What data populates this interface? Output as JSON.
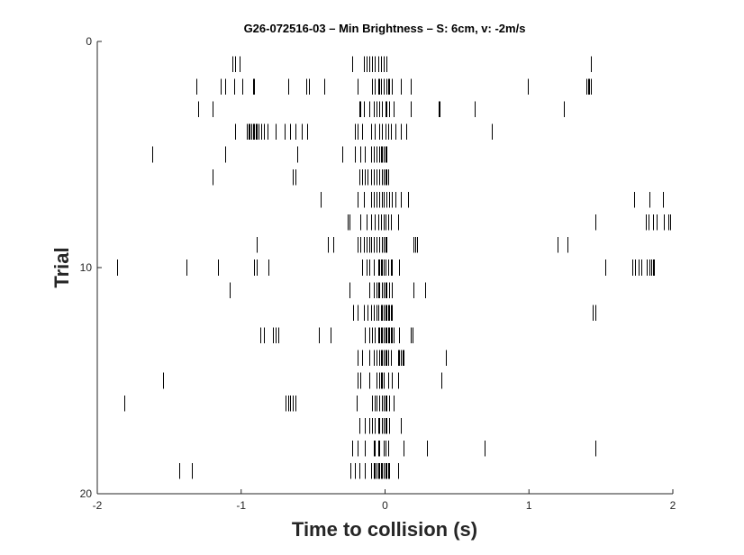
{
  "chart_data": {
    "type": "scatter",
    "subtype": "raster",
    "title": "G26-072516-03 –  Min Brightness – S: 6cm, v: -2m/s",
    "xlabel": "Time to collision (s)",
    "ylabel": "Trial",
    "xlim": [
      -2,
      2
    ],
    "ylim": [
      0,
      20
    ],
    "y_reversed": true,
    "xticks": [
      -2,
      -1,
      0,
      1,
      2
    ],
    "yticks": [
      0,
      10,
      20
    ],
    "grid": false,
    "box": false,
    "colors": {
      "spike": "#000000",
      "axis": "#262626"
    },
    "trials": [
      {
        "trial": 1,
        "times": [
          -1.06,
          -1.04,
          -1.01,
          -0.23,
          -0.15,
          -0.13,
          -0.11,
          -0.09,
          -0.07,
          -0.05,
          -0.03,
          -0.01,
          0.01,
          1.43
        ]
      },
      {
        "trial": 2,
        "times": [
          -1.31,
          -1.14,
          -1.11,
          -1.05,
          -0.99,
          -0.92,
          -0.91,
          -0.67,
          -0.55,
          -0.53,
          -0.42,
          -0.19,
          -0.09,
          -0.07,
          -0.05,
          -0.04,
          -0.03,
          -0.01,
          0.01,
          0.02,
          0.03,
          0.05,
          0.11,
          0.18,
          0.99,
          1.4,
          1.41,
          1.42,
          1.43
        ]
      },
      {
        "trial": 3,
        "times": [
          -1.3,
          -1.2,
          -0.18,
          -0.17,
          -0.15,
          -0.11,
          -0.08,
          -0.06,
          -0.04,
          -0.02,
          0.0,
          0.01,
          0.03,
          0.06,
          0.18,
          0.37,
          0.38,
          0.62,
          1.24
        ]
      },
      {
        "trial": 4,
        "times": [
          -1.04,
          -0.96,
          -0.95,
          -0.94,
          -0.93,
          -0.92,
          -0.91,
          -0.9,
          -0.89,
          -0.88,
          -0.86,
          -0.84,
          -0.82,
          -0.76,
          -0.7,
          -0.66,
          -0.62,
          -0.58,
          -0.54,
          -0.21,
          -0.19,
          -0.16,
          -0.1,
          -0.07,
          -0.04,
          -0.02,
          0.0,
          0.02,
          0.04,
          0.07,
          0.11,
          0.15,
          0.74
        ]
      },
      {
        "trial": 5,
        "times": [
          -1.62,
          -1.11,
          -0.61,
          -0.3,
          -0.21,
          -0.17,
          -0.14,
          -0.1,
          -0.08,
          -0.06,
          -0.04,
          -0.03,
          -0.02,
          -0.01,
          0.0,
          0.01
        ]
      },
      {
        "trial": 6,
        "times": [
          -1.2,
          -0.64,
          -0.62,
          -0.18,
          -0.16,
          -0.14,
          -0.12,
          -0.1,
          -0.08,
          -0.06,
          -0.04,
          -0.02,
          -0.01,
          0.0,
          0.01,
          0.02
        ]
      },
      {
        "trial": 7,
        "times": [
          -0.45,
          -0.19,
          -0.15,
          -0.1,
          -0.08,
          -0.06,
          -0.04,
          -0.02,
          -0.01,
          0.01,
          0.03,
          0.05,
          0.07,
          0.11,
          0.16,
          1.73,
          1.84,
          1.93
        ]
      },
      {
        "trial": 8,
        "times": [
          -0.26,
          -0.25,
          -0.17,
          -0.13,
          -0.1,
          -0.07,
          -0.05,
          -0.03,
          -0.01,
          0.0,
          0.02,
          0.04,
          0.09,
          1.46,
          1.81,
          1.83,
          1.86,
          1.89,
          1.94,
          1.97,
          1.98
        ]
      },
      {
        "trial": 9,
        "times": [
          -0.89,
          -0.4,
          -0.36,
          -0.19,
          -0.17,
          -0.15,
          -0.13,
          -0.11,
          -0.1,
          -0.08,
          -0.06,
          -0.04,
          -0.02,
          -0.01,
          0.0,
          0.01,
          0.2,
          0.21,
          0.22,
          1.2,
          1.27
        ]
      },
      {
        "trial": 10,
        "times": [
          -1.86,
          -1.38,
          -1.16,
          -0.91,
          -0.89,
          -0.81,
          -0.16,
          -0.13,
          -0.11,
          -0.08,
          -0.05,
          -0.04,
          -0.03,
          -0.02,
          -0.01,
          0.0,
          0.02,
          0.04,
          0.05,
          0.1,
          1.53,
          1.72,
          1.74,
          1.76,
          1.78,
          1.82,
          1.84,
          1.85,
          1.86,
          1.87
        ]
      },
      {
        "trial": 11,
        "times": [
          -1.08,
          -0.25,
          -0.11,
          -0.08,
          -0.06,
          -0.05,
          -0.04,
          -0.02,
          -0.01,
          0.0,
          0.01,
          0.03,
          0.05,
          0.2,
          0.28
        ]
      },
      {
        "trial": 12,
        "times": [
          -0.22,
          -0.19,
          -0.15,
          -0.12,
          -0.1,
          -0.08,
          -0.06,
          -0.05,
          -0.03,
          -0.02,
          -0.01,
          0.0,
          0.01,
          0.02,
          0.03,
          0.04,
          0.05,
          1.44,
          1.46
        ]
      },
      {
        "trial": 13,
        "times": [
          -0.87,
          -0.84,
          -0.78,
          -0.76,
          -0.74,
          -0.46,
          -0.38,
          -0.14,
          -0.11,
          -0.09,
          -0.07,
          -0.05,
          -0.04,
          -0.03,
          -0.02,
          -0.01,
          0.0,
          0.01,
          0.02,
          0.03,
          0.04,
          0.05,
          0.06,
          0.1,
          0.18,
          0.19
        ]
      },
      {
        "trial": 14,
        "times": [
          -0.19,
          -0.16,
          -0.11,
          -0.08,
          -0.06,
          -0.04,
          -0.03,
          -0.02,
          -0.01,
          0.0,
          0.01,
          0.02,
          0.04,
          0.09,
          0.1,
          0.11,
          0.12,
          0.13,
          0.42
        ]
      },
      {
        "trial": 15,
        "times": [
          -1.54,
          -0.19,
          -0.17,
          -0.11,
          -0.06,
          -0.04,
          -0.03,
          -0.02,
          -0.01,
          0.02,
          0.05,
          0.09,
          0.39
        ]
      },
      {
        "trial": 16,
        "times": [
          -1.81,
          -0.69,
          -0.67,
          -0.66,
          -0.64,
          -0.62,
          -0.2,
          -0.09,
          -0.07,
          -0.06,
          -0.04,
          -0.02,
          -0.01,
          0.0,
          0.01,
          0.03,
          0.06
        ]
      },
      {
        "trial": 17,
        "times": [
          -0.18,
          -0.14,
          -0.11,
          -0.09,
          -0.07,
          -0.05,
          -0.04,
          -0.02,
          -0.01,
          0.0,
          0.01,
          0.03,
          0.11
        ]
      },
      {
        "trial": 18,
        "times": [
          -0.23,
          -0.19,
          -0.14,
          -0.08,
          -0.07,
          -0.05,
          -0.04,
          -0.01,
          0.0,
          0.02,
          0.13,
          0.29,
          0.69,
          1.46
        ]
      },
      {
        "trial": 19,
        "times": [
          -1.43,
          -1.34,
          -0.24,
          -0.21,
          -0.18,
          -0.14,
          -0.1,
          -0.08,
          -0.07,
          -0.06,
          -0.05,
          -0.04,
          -0.03,
          -0.02,
          -0.01,
          0.0,
          0.01,
          0.02,
          0.03,
          0.09
        ]
      }
    ]
  }
}
